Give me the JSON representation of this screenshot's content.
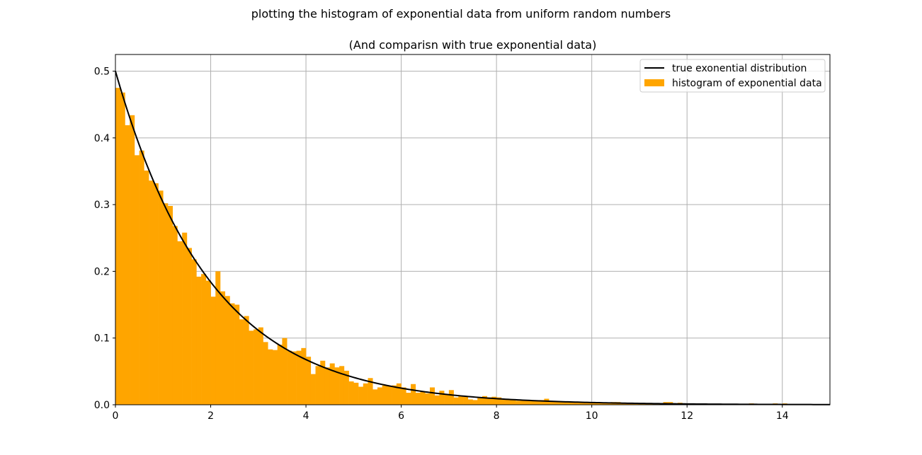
{
  "figure": {
    "suptitle": "plotting the histogram of exponential data from uniform random numbers"
  },
  "chart_data": {
    "type": "bar",
    "title": "(And comparisn with true exponential data)",
    "xlabel": "",
    "ylabel": "",
    "xlim": [
      0,
      15
    ],
    "ylim": [
      0,
      0.525
    ],
    "xticks": [
      0,
      2,
      4,
      6,
      8,
      10,
      12,
      14
    ],
    "yticks": [
      0.0,
      0.1,
      0.2,
      0.3,
      0.4,
      0.5
    ],
    "xtick_labels": [
      "0",
      "2",
      "4",
      "6",
      "8",
      "10",
      "12",
      "14"
    ],
    "ytick_labels": [
      "0.0",
      "0.1",
      "0.2",
      "0.3",
      "0.4",
      "0.5"
    ],
    "grid": true,
    "legend_position": "upper right",
    "legend": [
      "true exonential distribution",
      "histogram of exponential data"
    ],
    "colors": {
      "bars": "#FFA500",
      "line": "#000000",
      "grid": "#b0b0b0"
    },
    "histogram": {
      "name": "histogram of exponential data",
      "bin_width": 0.1,
      "bin_starts": [
        0.0,
        0.1,
        0.2,
        0.3,
        0.4,
        0.5,
        0.6,
        0.7,
        0.8,
        0.9,
        1.0,
        1.1,
        1.2,
        1.3,
        1.4,
        1.5,
        1.6,
        1.7,
        1.8,
        1.9,
        2.0,
        2.1,
        2.2,
        2.3,
        2.4,
        2.5,
        2.6,
        2.7,
        2.8,
        2.9,
        3.0,
        3.1,
        3.2,
        3.3,
        3.4,
        3.5,
        3.6,
        3.7,
        3.8,
        3.9,
        4.0,
        4.1,
        4.2,
        4.3,
        4.4,
        4.5,
        4.6,
        4.7,
        4.8,
        4.9,
        5.0,
        5.1,
        5.2,
        5.3,
        5.4,
        5.5,
        5.6,
        5.7,
        5.8,
        5.9,
        6.0,
        6.1,
        6.2,
        6.3,
        6.4,
        6.5,
        6.6,
        6.7,
        6.8,
        6.9,
        7.0,
        7.1,
        7.2,
        7.3,
        7.4,
        7.5,
        7.6,
        7.7,
        7.8,
        7.9,
        8.0,
        8.1,
        8.2,
        8.3,
        8.4,
        8.5,
        8.6,
        8.7,
        8.8,
        8.9,
        9.0,
        9.1,
        9.2,
        9.3,
        9.4,
        9.5,
        9.6,
        9.7,
        9.8,
        9.9,
        10.0,
        10.1,
        10.2,
        10.3,
        10.4,
        10.5,
        10.6,
        10.7,
        10.8,
        10.9,
        11.0,
        11.1,
        11.2,
        11.3,
        11.4,
        11.5,
        11.6,
        11.7,
        11.8,
        11.9,
        12.0,
        12.1,
        12.2,
        12.3,
        12.4,
        12.5,
        12.6,
        12.7,
        12.8,
        12.9,
        13.0,
        13.1,
        13.2,
        13.3,
        13.4,
        13.5,
        13.6,
        13.7,
        13.8,
        13.9,
        14.0
      ],
      "values": [
        0.475,
        0.468,
        0.419,
        0.434,
        0.374,
        0.381,
        0.351,
        0.336,
        0.332,
        0.321,
        0.302,
        0.298,
        0.268,
        0.245,
        0.258,
        0.235,
        0.218,
        0.192,
        0.196,
        0.186,
        0.162,
        0.2,
        0.17,
        0.163,
        0.152,
        0.15,
        0.128,
        0.133,
        0.111,
        0.113,
        0.116,
        0.094,
        0.083,
        0.082,
        0.09,
        0.1,
        0.081,
        0.08,
        0.081,
        0.085,
        0.072,
        0.046,
        0.058,
        0.066,
        0.056,
        0.062,
        0.056,
        0.058,
        0.051,
        0.035,
        0.033,
        0.027,
        0.032,
        0.04,
        0.023,
        0.026,
        0.029,
        0.028,
        0.029,
        0.032,
        0.026,
        0.018,
        0.031,
        0.018,
        0.02,
        0.017,
        0.026,
        0.014,
        0.021,
        0.016,
        0.022,
        0.011,
        0.013,
        0.012,
        0.008,
        0.007,
        0.01,
        0.013,
        0.011,
        0.012,
        0.011,
        0.008,
        0.008,
        0.008,
        0.006,
        0.007,
        0.007,
        0.006,
        0.006,
        0.007,
        0.009,
        0.005,
        0.005,
        0.004,
        0.004,
        0.004,
        0.004,
        0.003,
        0.003,
        0.003,
        0.003,
        0.003,
        0.003,
        0.003,
        0.004,
        0.004,
        0.003,
        0.002,
        0.002,
        0.002,
        0.002,
        0.002,
        0.002,
        0.001,
        0.002,
        0.004,
        0.004,
        0.002,
        0.003,
        0.002,
        0.001,
        0.001,
        0.001,
        0.001,
        0.001,
        0.001,
        0.001,
        0.001,
        0.001,
        0.001,
        0.001,
        0.001,
        0.001,
        0.002,
        0.001,
        0.001,
        0.001,
        0.001,
        0.002,
        0.001,
        0.002
      ]
    },
    "line": {
      "name": "true exonential distribution",
      "function": "0.5*exp(-0.5*x)",
      "x_range": [
        0,
        15
      ]
    }
  }
}
